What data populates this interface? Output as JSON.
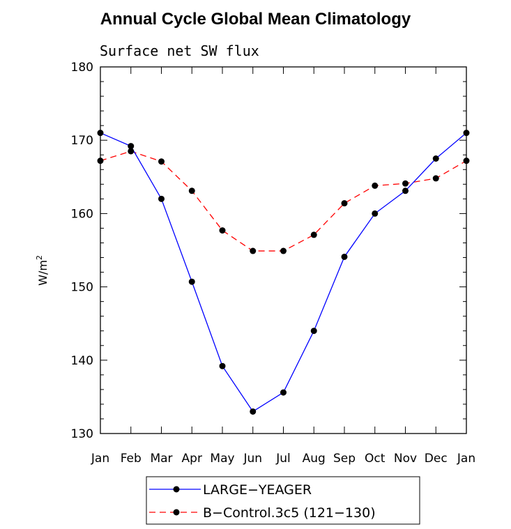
{
  "chart_data": {
    "type": "line",
    "title": "Annual Cycle Global Mean Climatology",
    "subtitle": "Surface net SW flux",
    "ylabel": "W/m",
    "ylabel_sup": "2",
    "xlabel": "",
    "categories": [
      "Jan",
      "Feb",
      "Mar",
      "Apr",
      "May",
      "Jun",
      "Jul",
      "Aug",
      "Sep",
      "Oct",
      "Nov",
      "Dec",
      "Jan"
    ],
    "ylim": [
      130,
      180
    ],
    "yticks": [
      130,
      140,
      150,
      160,
      170,
      180
    ],
    "series": [
      {
        "name": "LARGE−YEAGER",
        "color": "#0000ff",
        "dash": "solid",
        "values": [
          171.0,
          169.2,
          162.0,
          150.7,
          139.2,
          133.0,
          135.6,
          144.0,
          154.1,
          160.0,
          163.1,
          167.5,
          171.0
        ]
      },
      {
        "name": "B−Control.3c5 (121−130)",
        "color": "#ff0000",
        "dash": "dashed",
        "values": [
          167.2,
          168.5,
          167.1,
          163.1,
          157.7,
          154.9,
          154.9,
          157.1,
          161.4,
          163.8,
          164.1,
          164.8,
          167.2
        ]
      }
    ],
    "legend_position": "bottom-center"
  }
}
